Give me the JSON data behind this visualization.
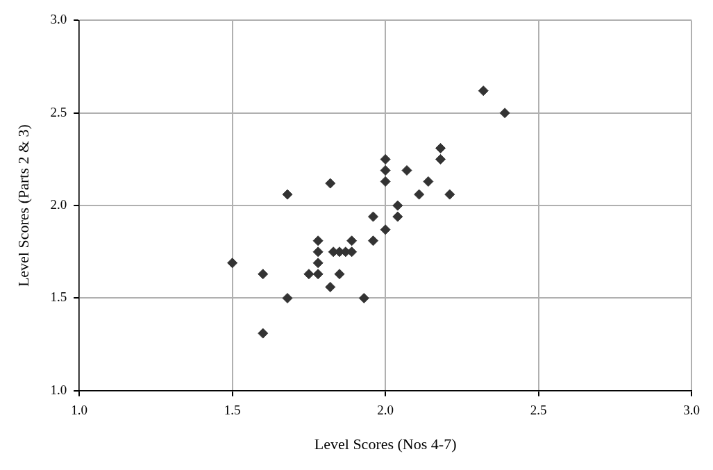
{
  "chart_data": {
    "type": "scatter",
    "xlabel": "Level Scores (Nos 4-7)",
    "ylabel": "Level Scores (Parts 2 & 3)",
    "x": [
      1.5,
      1.6,
      1.6,
      1.68,
      1.68,
      1.75,
      1.78,
      1.78,
      1.78,
      1.78,
      1.82,
      1.82,
      1.83,
      1.85,
      1.87,
      1.89,
      1.85,
      1.89,
      1.93,
      1.96,
      1.96,
      2.0,
      2.0,
      2.0,
      2.0,
      2.07,
      2.04,
      2.04,
      2.11,
      2.14,
      2.18,
      2.18,
      2.21,
      2.32,
      2.39
    ],
    "values": [
      1.69,
      1.63,
      1.31,
      2.06,
      1.5,
      1.63,
      1.81,
      1.75,
      1.69,
      1.63,
      1.56,
      2.12,
      1.75,
      1.75,
      1.75,
      1.75,
      1.63,
      1.81,
      1.5,
      1.94,
      1.81,
      1.87,
      2.25,
      2.19,
      2.13,
      2.19,
      2.0,
      1.94,
      2.06,
      2.13,
      2.31,
      2.25,
      2.06,
      2.62,
      2.5
    ],
    "color": "#333333",
    "marker": "diamond",
    "grid": true,
    "xlim": [
      1.0,
      3.0
    ],
    "xticks": [
      {
        "value": 1.0,
        "label": "1.0"
      },
      {
        "value": 1.5,
        "label": "1.5"
      },
      {
        "value": 2.0,
        "label": "2.0"
      },
      {
        "value": 2.5,
        "label": "2.5"
      },
      {
        "value": 3.0,
        "label": "3.0"
      }
    ],
    "ylim": [
      1.0,
      3.0
    ],
    "yticks": [
      {
        "value": 1.0,
        "label": "1.0"
      },
      {
        "value": 1.5,
        "label": "1.5"
      },
      {
        "value": 2.0,
        "label": "2.0"
      },
      {
        "value": 2.5,
        "label": "2.5"
      },
      {
        "value": 3.0,
        "label": "3.0"
      }
    ]
  }
}
